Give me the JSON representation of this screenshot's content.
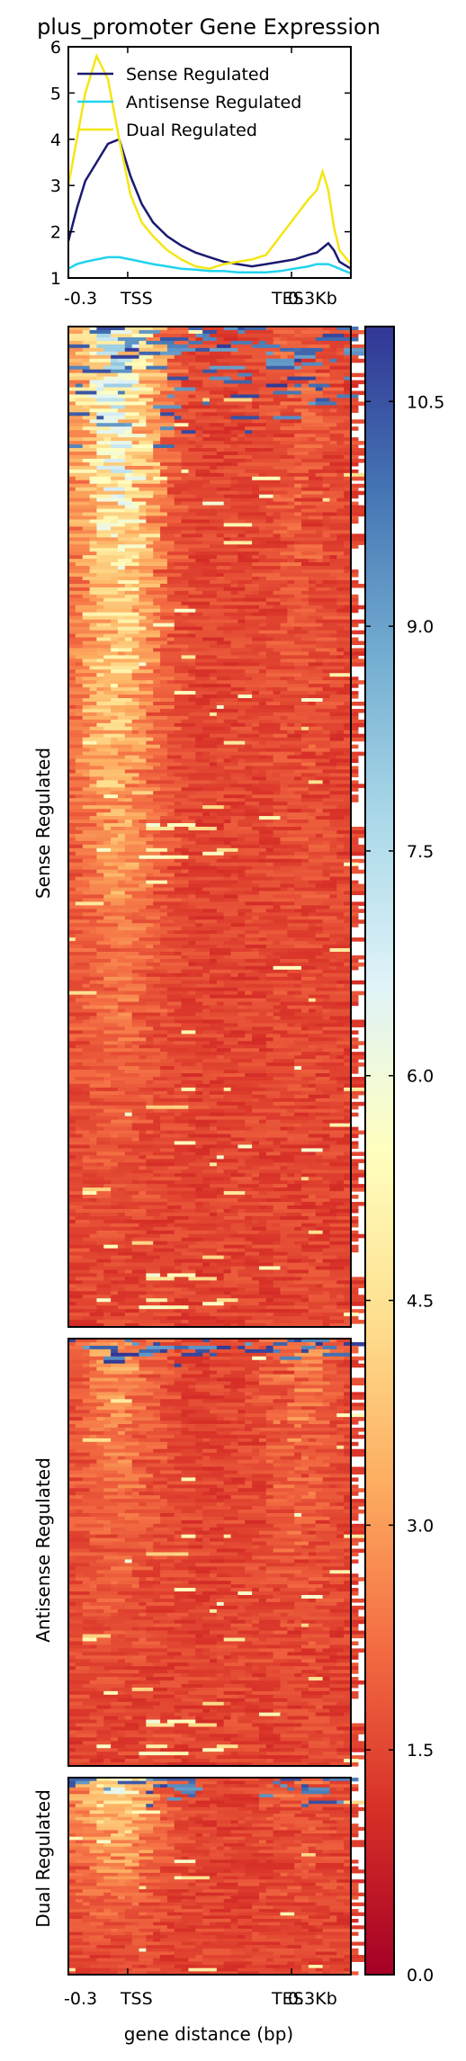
{
  "chart_data": [
    {
      "type": "line",
      "title": "plus_promoter Gene Expression",
      "xlabel": "",
      "ylabel": "",
      "ylim": [
        1,
        6
      ],
      "yticks": [
        1,
        2,
        3,
        4,
        5,
        6
      ],
      "xticks": [
        "-0.3",
        "TSS",
        "TES",
        "0.3Kb"
      ],
      "x": [
        0,
        3,
        6,
        10,
        14,
        18,
        22,
        26,
        30,
        35,
        40,
        45,
        50,
        55,
        60,
        65,
        70,
        75,
        80,
        85,
        88,
        90,
        92,
        94,
        96,
        100
      ],
      "legend_position": "upper-left",
      "series": [
        {
          "name": "Sense Regulated",
          "color": "#1a1a70",
          "values": [
            1.8,
            2.5,
            3.1,
            3.5,
            3.9,
            4.0,
            3.2,
            2.6,
            2.2,
            1.9,
            1.7,
            1.55,
            1.45,
            1.35,
            1.3,
            1.25,
            1.3,
            1.35,
            1.4,
            1.5,
            1.55,
            1.65,
            1.75,
            1.6,
            1.35,
            1.2
          ]
        },
        {
          "name": "Antisense Regulated",
          "color": "#22d3ee",
          "values": [
            1.2,
            1.3,
            1.35,
            1.4,
            1.45,
            1.45,
            1.4,
            1.35,
            1.3,
            1.25,
            1.2,
            1.18,
            1.15,
            1.15,
            1.12,
            1.12,
            1.12,
            1.15,
            1.2,
            1.25,
            1.3,
            1.3,
            1.3,
            1.25,
            1.2,
            1.1
          ]
        },
        {
          "name": "Dual Regulated",
          "color": "#f5e614",
          "values": [
            3.0,
            4.0,
            5.0,
            5.8,
            5.3,
            4.0,
            2.8,
            2.2,
            1.9,
            1.6,
            1.4,
            1.25,
            1.2,
            1.3,
            1.35,
            1.4,
            1.5,
            1.9,
            2.3,
            2.7,
            2.9,
            3.3,
            2.9,
            2.1,
            1.6,
            1.3
          ]
        }
      ]
    },
    {
      "type": "heatmap",
      "xlabel": "gene distance (bp)",
      "xticks": [
        "-0.3",
        "TSS",
        "TES",
        "0.3Kb"
      ],
      "colorbar": {
        "min": 0.0,
        "max": 11.0,
        "ticks": [
          "0.0",
          "1.5",
          "3.0",
          "4.5",
          "6.0",
          "7.5",
          "9.0",
          "10.5"
        ],
        "colormap": "RdYlBu"
      },
      "groups": [
        {
          "name": "Sense Regulated"
        },
        {
          "name": "Antisense Regulated"
        },
        {
          "name": "Dual Regulated"
        }
      ]
    }
  ]
}
